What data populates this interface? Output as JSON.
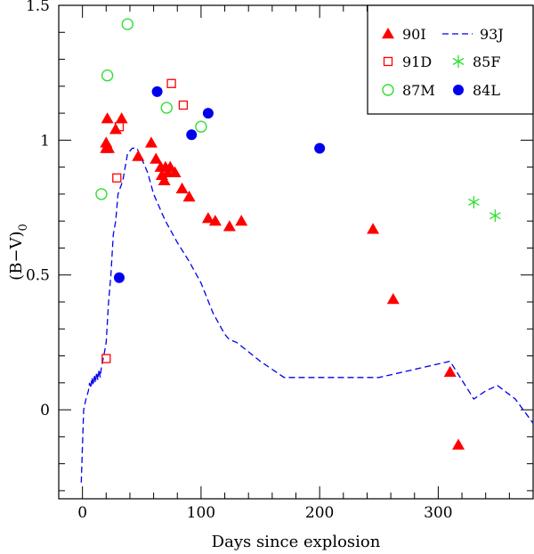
{
  "chart_data": {
    "type": "scatter",
    "xlabel": "Days since explosion",
    "ylabel_main": "(B−V)",
    "ylabel_sub": "0",
    "xlim": [
      -20,
      380
    ],
    "ylim": [
      -0.33,
      1.5
    ],
    "xticks": [
      0,
      100,
      200,
      300
    ],
    "xtick_labels": [
      "0",
      "100",
      "200",
      "300"
    ],
    "yticks": [
      0,
      0.5,
      1,
      1.5
    ],
    "ytick_labels": [
      "0",
      "0.5",
      "1",
      "1.5"
    ],
    "legend_position": "top-right",
    "grid": false,
    "series": [
      {
        "name": "90I",
        "marker": "filled-triangle",
        "color": "#ff0000",
        "x": [
          21,
          20,
          20,
          22,
          28,
          33,
          47,
          58,
          62,
          66,
          67,
          69,
          70,
          72,
          74,
          78,
          84,
          90,
          106,
          112,
          124,
          134,
          245,
          262,
          310,
          317
        ],
        "y": [
          1.08,
          0.99,
          0.97,
          0.97,
          1.04,
          1.08,
          0.94,
          0.99,
          0.93,
          0.9,
          0.87,
          0.85,
          0.9,
          0.88,
          0.9,
          0.88,
          0.82,
          0.79,
          0.71,
          0.7,
          0.68,
          0.7,
          0.67,
          0.41,
          0.14,
          -0.13
        ]
      },
      {
        "name": "91D",
        "marker": "open-square",
        "color": "#ff0000",
        "x": [
          20,
          29,
          31,
          75,
          85
        ],
        "y": [
          0.19,
          0.86,
          1.05,
          1.21,
          1.13
        ]
      },
      {
        "name": "87M",
        "marker": "open-circle",
        "color": "#33dd33",
        "x": [
          16,
          21,
          38,
          71,
          100
        ],
        "y": [
          0.8,
          1.24,
          1.43,
          1.12,
          1.05
        ]
      },
      {
        "name": "93J",
        "marker": "dashed-line",
        "color": "#0000ee",
        "x": [
          -1,
          1,
          3,
          5,
          6,
          7,
          8,
          9,
          10,
          11,
          12,
          13,
          14,
          15,
          16,
          18,
          20,
          22,
          24,
          26,
          28,
          30,
          34,
          38,
          42,
          46,
          50,
          55,
          60,
          70,
          80,
          90,
          100,
          110,
          120,
          124,
          130,
          150,
          170,
          200,
          220,
          250,
          280,
          310,
          330,
          340,
          350,
          365,
          380
        ],
        "y": [
          -0.27,
          0.0,
          0.04,
          0.07,
          0.1,
          0.08,
          0.12,
          0.09,
          0.13,
          0.1,
          0.14,
          0.11,
          0.15,
          0.12,
          0.16,
          0.2,
          0.25,
          0.4,
          0.5,
          0.65,
          0.7,
          0.8,
          0.85,
          0.95,
          0.97,
          0.97,
          0.93,
          0.88,
          0.8,
          0.7,
          0.62,
          0.55,
          0.47,
          0.36,
          0.28,
          0.26,
          0.25,
          0.18,
          0.12,
          0.12,
          0.12,
          0.12,
          0.15,
          0.18,
          0.04,
          0.07,
          0.09,
          0.04,
          -0.05
        ]
      },
      {
        "name": "85F",
        "marker": "star",
        "color": "#33dd33",
        "x": [
          330,
          348
        ],
        "y": [
          0.77,
          0.72
        ]
      },
      {
        "name": "84L",
        "marker": "filled-circle",
        "color": "#0000ee",
        "x": [
          31,
          63,
          92,
          106,
          200
        ],
        "y": [
          0.49,
          1.18,
          1.02,
          1.1,
          0.97
        ]
      }
    ]
  }
}
